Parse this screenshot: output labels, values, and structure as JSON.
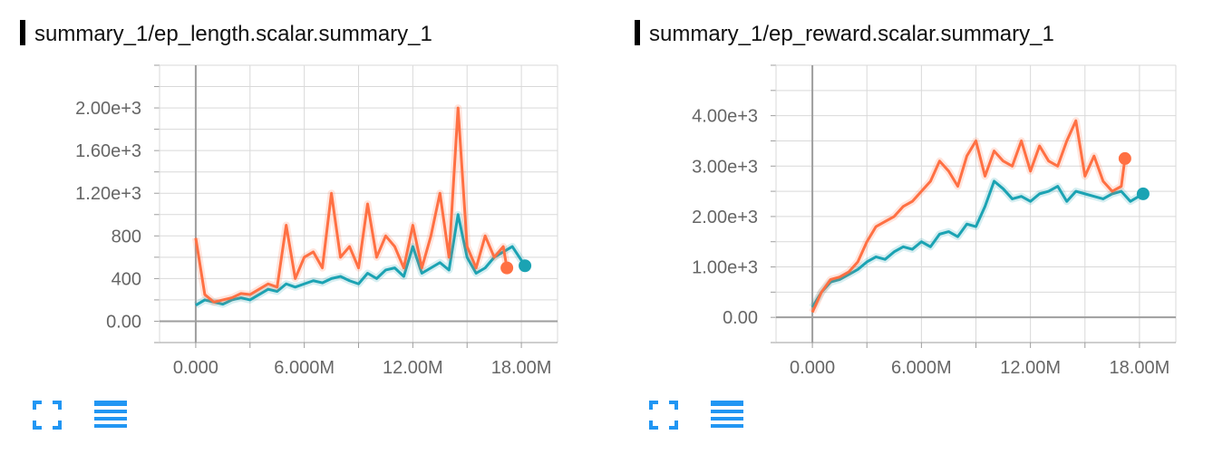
{
  "colors": {
    "orange": "#ff7043",
    "teal": "#1ba3b3",
    "grid": "#d9d9d9",
    "axis": "#9e9e9e"
  },
  "icons": {
    "fullscreen": "fullscreen-icon",
    "data_toggle": "list-lines-icon"
  },
  "chart_data": [
    {
      "type": "line",
      "title": "summary_1/ep_length.scalar.summary_1",
      "xlabel": "",
      "ylabel": "",
      "xlim": [
        -2000000,
        20000000
      ],
      "ylim": [
        -200,
        2400
      ],
      "x_ticks": [
        0,
        6000000,
        12000000,
        18000000
      ],
      "x_tick_labels": [
        "0.000",
        "6.000M",
        "12.00M",
        "18.00M"
      ],
      "y_ticks": [
        0,
        400,
        800,
        1200,
        1600,
        2000
      ],
      "y_tick_labels": [
        "0.00",
        "400",
        "800",
        "1.20e+3",
        "1.60e+3",
        "2.00e+3"
      ],
      "grid": true,
      "series": [
        {
          "color": "#1ba3b3",
          "x": [
            0,
            500000,
            1000000,
            1500000,
            2000000,
            2500000,
            3000000,
            3500000,
            4000000,
            4500000,
            5000000,
            5500000,
            6000000,
            6500000,
            7000000,
            7500000,
            8000000,
            8500000,
            9000000,
            9500000,
            10000000,
            10500000,
            11000000,
            11500000,
            12000000,
            12500000,
            13000000,
            13500000,
            14000000,
            14500000,
            15000000,
            15500000,
            16000000,
            16500000,
            17000000,
            17500000,
            18200000
          ],
          "y": [
            150,
            200,
            180,
            160,
            200,
            220,
            200,
            250,
            300,
            280,
            350,
            320,
            350,
            380,
            360,
            400,
            420,
            380,
            350,
            450,
            400,
            480,
            500,
            420,
            700,
            450,
            500,
            550,
            480,
            1000,
            600,
            450,
            500,
            600,
            650,
            700,
            520
          ]
        },
        {
          "color": "#ff7043",
          "x": [
            0,
            500000,
            1000000,
            1500000,
            2000000,
            2500000,
            3000000,
            3500000,
            4000000,
            4500000,
            5000000,
            5500000,
            6000000,
            6500000,
            7000000,
            7500000,
            8000000,
            8500000,
            9000000,
            9500000,
            10000000,
            10500000,
            11000000,
            11500000,
            12000000,
            12500000,
            13000000,
            13500000,
            14000000,
            14500000,
            15000000,
            15500000,
            16000000,
            16500000,
            17000000,
            17200000
          ],
          "y": [
            780,
            250,
            180,
            200,
            220,
            260,
            250,
            300,
            350,
            320,
            900,
            400,
            600,
            650,
            500,
            1200,
            600,
            700,
            500,
            1100,
            600,
            800,
            700,
            500,
            900,
            500,
            800,
            1200,
            600,
            2000,
            700,
            500,
            800,
            600,
            700,
            500
          ]
        }
      ]
    },
    {
      "type": "line",
      "title": "summary_1/ep_reward.scalar.summary_1",
      "xlabel": "",
      "ylabel": "",
      "xlim": [
        -2000000,
        20000000
      ],
      "ylim": [
        -500,
        5000
      ],
      "x_ticks": [
        0,
        6000000,
        12000000,
        18000000
      ],
      "x_tick_labels": [
        "0.000",
        "6.000M",
        "12.00M",
        "18.00M"
      ],
      "y_ticks": [
        0,
        1000,
        2000,
        3000,
        4000
      ],
      "y_tick_labels": [
        "0.00",
        "1.00e+3",
        "2.00e+3",
        "3.00e+3",
        "4.00e+3"
      ],
      "grid": true,
      "series": [
        {
          "color": "#1ba3b3",
          "x": [
            0,
            500000,
            1000000,
            1500000,
            2000000,
            2500000,
            3000000,
            3500000,
            4000000,
            4500000,
            5000000,
            5500000,
            6000000,
            6500000,
            7000000,
            7500000,
            8000000,
            8500000,
            9000000,
            9500000,
            10000000,
            10500000,
            11000000,
            11500000,
            12000000,
            12500000,
            13000000,
            13500000,
            14000000,
            14500000,
            15000000,
            15500000,
            16000000,
            16500000,
            17000000,
            17500000,
            18200000
          ],
          "y": [
            200,
            500,
            700,
            750,
            850,
            950,
            1100,
            1200,
            1150,
            1300,
            1400,
            1350,
            1500,
            1400,
            1650,
            1700,
            1600,
            1850,
            1800,
            2200,
            2700,
            2550,
            2350,
            2400,
            2300,
            2450,
            2500,
            2600,
            2300,
            2500,
            2450,
            2400,
            2350,
            2450,
            2500,
            2300,
            2450
          ]
        },
        {
          "color": "#ff7043",
          "x": [
            0,
            500000,
            1000000,
            1500000,
            2000000,
            2500000,
            3000000,
            3500000,
            4000000,
            4500000,
            5000000,
            5500000,
            6000000,
            6500000,
            7000000,
            7500000,
            8000000,
            8500000,
            9000000,
            9500000,
            10000000,
            10500000,
            11000000,
            11500000,
            12000000,
            12500000,
            13000000,
            13500000,
            14000000,
            14500000,
            15000000,
            15500000,
            16000000,
            16500000,
            17000000,
            17200000
          ],
          "y": [
            100,
            500,
            750,
            800,
            900,
            1100,
            1500,
            1800,
            1900,
            2000,
            2200,
            2300,
            2500,
            2700,
            3100,
            2900,
            2600,
            3200,
            3500,
            2800,
            3300,
            3100,
            3000,
            3500,
            2900,
            3400,
            3100,
            3000,
            3500,
            3900,
            2800,
            3200,
            2700,
            2500,
            2600,
            3150
          ]
        }
      ]
    }
  ]
}
